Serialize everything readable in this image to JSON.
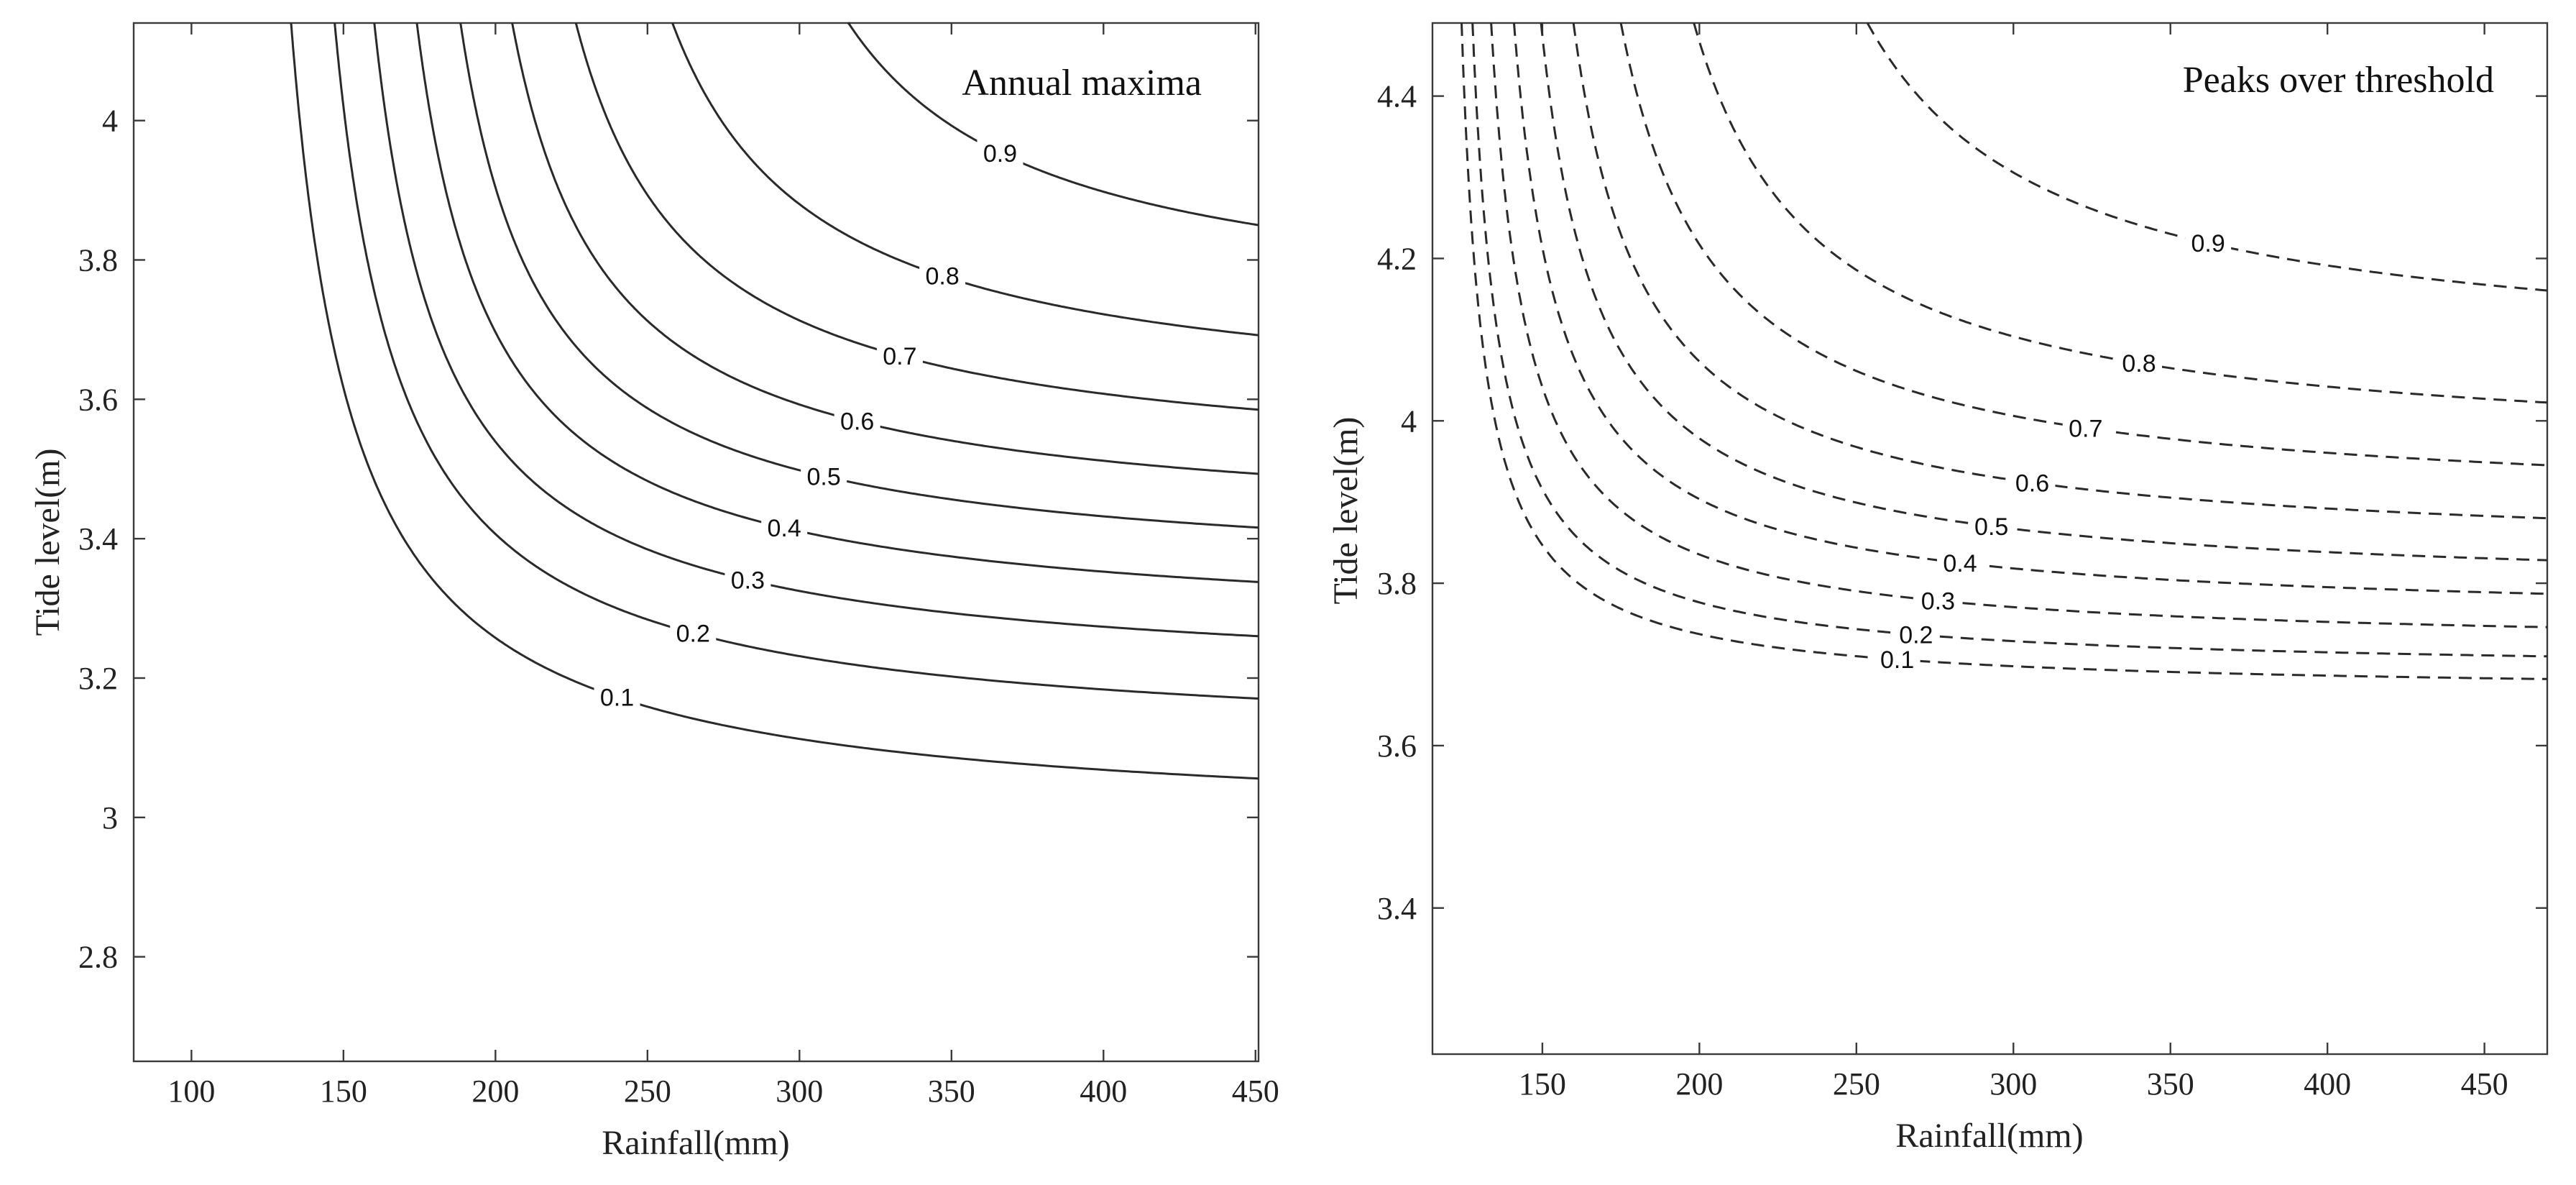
{
  "chart_data": [
    {
      "type": "contour",
      "title": "Annual maxima",
      "xlabel": "Rainfall(mm)",
      "ylabel": "Tide level(m)",
      "xlim": [
        81,
        451
      ],
      "ylim": [
        2.65,
        4.14
      ],
      "xticks": [
        100,
        150,
        200,
        250,
        300,
        350,
        400,
        450
      ],
      "yticks": [
        2.8,
        3,
        3.2,
        3.4,
        3.6,
        3.8,
        4
      ],
      "line_style": "solid",
      "levels": [
        {
          "label": "0.1",
          "x0": 112,
          "y_asym": 2.985,
          "k": 24,
          "label_x": 240
        },
        {
          "label": "0.2",
          "x0": 125,
          "y_asym": 3.1,
          "k": 23,
          "label_x": 265
        },
        {
          "label": "0.3",
          "x0": 137,
          "y_asym": 3.19,
          "k": 22,
          "label_x": 283
        },
        {
          "label": "0.4",
          "x0": 149,
          "y_asym": 3.265,
          "k": 22,
          "label_x": 295
        },
        {
          "label": "0.5",
          "x0": 161,
          "y_asym": 3.34,
          "k": 22,
          "label_x": 308
        },
        {
          "label": "0.6",
          "x0": 174,
          "y_asym": 3.41,
          "k": 23,
          "label_x": 319
        },
        {
          "label": "0.7",
          "x0": 188,
          "y_asym": 3.49,
          "k": 25,
          "label_x": 333
        },
        {
          "label": "0.8",
          "x0": 210,
          "y_asym": 3.58,
          "k": 27,
          "label_x": 347
        },
        {
          "label": "0.9",
          "x0": 251,
          "y_asym": 3.71,
          "k": 28,
          "label_x": 366
        }
      ]
    },
    {
      "type": "contour",
      "title": "Peaks over threshold",
      "xlabel": "Rainfall(mm)",
      "ylabel": "Tide level(m)",
      "xlim": [
        115,
        470
      ],
      "ylim": [
        3.22,
        4.49
      ],
      "xticks": [
        150,
        200,
        250,
        300,
        350,
        400,
        450
      ],
      "yticks": [
        3.4,
        3.6,
        3.8,
        4,
        4.2,
        4.4
      ],
      "line_style": "dashed",
      "levels": [
        {
          "label": "0.1",
          "x0": 117,
          "y_asym": 3.665,
          "k": 6,
          "label_x": 263
        },
        {
          "label": "0.2",
          "x0": 119,
          "y_asym": 3.69,
          "k": 7,
          "label_x": 269
        },
        {
          "label": "0.3",
          "x0": 122,
          "y_asym": 3.72,
          "k": 9,
          "label_x": 276
        },
        {
          "label": "0.4",
          "x0": 126,
          "y_asym": 3.755,
          "k": 11,
          "label_x": 283
        },
        {
          "label": "0.5",
          "x0": 131,
          "y_asym": 3.79,
          "k": 13,
          "label_x": 293
        },
        {
          "label": "0.6",
          "x0": 137,
          "y_asym": 3.835,
          "k": 15,
          "label_x": 306
        },
        {
          "label": "0.7",
          "x0": 145,
          "y_asym": 3.89,
          "k": 18,
          "label_x": 323
        },
        {
          "label": "0.8",
          "x0": 159,
          "y_asym": 3.955,
          "k": 21,
          "label_x": 340
        },
        {
          "label": "0.9",
          "x0": 194,
          "y_asym": 4.07,
          "k": 25,
          "label_x": 362
        }
      ]
    }
  ]
}
